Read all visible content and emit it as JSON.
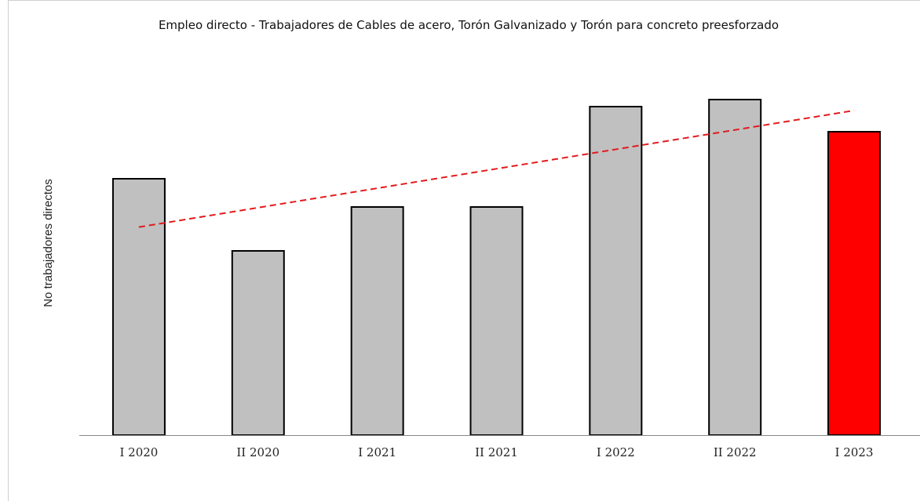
{
  "chart_data": {
    "type": "bar",
    "title": "Empleo directo - Trabajadores de Cables de acero, Torón Galvanizado y Torón para concreto preesforzado",
    "y_label": "No trabajadores directos",
    "categories": [
      "I 2020",
      "II 2020",
      "I 2021",
      "II 2021",
      "I 2022",
      "II 2022",
      "I 2023"
    ],
    "values": [
      327,
      235,
      291,
      291,
      419,
      428,
      387
    ],
    "colors": [
      "#c0c0c0",
      "#c0c0c0",
      "#c0c0c0",
      "#c0c0c0",
      "#c0c0c0",
      "#c0c0c0",
      "#ff0000"
    ],
    "ylim": [
      0,
      465
    ],
    "trendline": true,
    "trendline_color": "#e31a1c"
  }
}
